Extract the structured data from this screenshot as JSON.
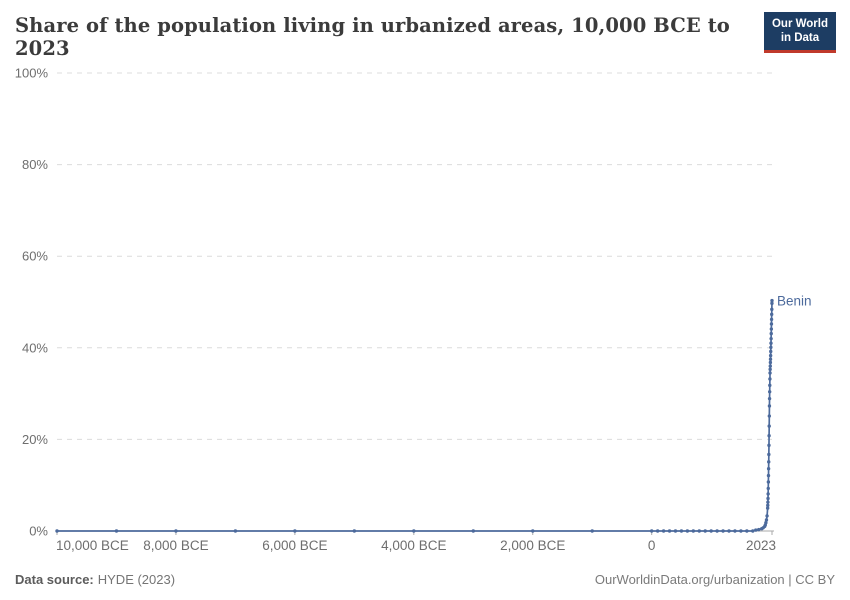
{
  "header": {
    "title": "Share of the population living in urbanized areas, 10,000 BCE to 2023",
    "logo": {
      "line1": "Our World",
      "line2": "in Data"
    }
  },
  "footer": {
    "source_label": "Data source:",
    "source_value": "HYDE (2023)",
    "credit": "OurWorldinData.org/urbanization | CC BY"
  },
  "colors": {
    "series_line": "#4c6a9c",
    "series_label": "#4c6a9c",
    "gridline": "#dcdcdc",
    "axis": "#a8a8a8",
    "tick_label": "#6e6e6e",
    "title": "#3b3b3b",
    "footer_text": "#757575",
    "logo_background": "#1d3d63",
    "logo_underline": "#c0392b"
  },
  "chart_data": {
    "type": "line",
    "title": "Share of the population living in urbanized areas, 10,000 BCE to 2023",
    "xlabel": "",
    "ylabel": "",
    "xlim": [
      -10000,
      2023
    ],
    "ylim": [
      0,
      100
    ],
    "grid": "horizontal-dashed",
    "legend_position": "end-of-line-label",
    "yticks": [
      {
        "value": 0,
        "label": "0%"
      },
      {
        "value": 20,
        "label": "20%"
      },
      {
        "value": 40,
        "label": "40%"
      },
      {
        "value": 60,
        "label": "60%"
      },
      {
        "value": 80,
        "label": "80%"
      },
      {
        "value": 100,
        "label": "100%"
      }
    ],
    "xticks": [
      {
        "value": -10000,
        "label": "10,000 BCE"
      },
      {
        "value": -8000,
        "label": "8,000 BCE"
      },
      {
        "value": -6000,
        "label": "6,000 BCE"
      },
      {
        "value": -4000,
        "label": "4,000 BCE"
      },
      {
        "value": -2000,
        "label": "2,000 BCE"
      },
      {
        "value": 0,
        "label": "0"
      },
      {
        "value": 2023,
        "label": "2023"
      }
    ],
    "series": [
      {
        "name": "Benin",
        "color": "#4c6a9c",
        "points": [
          [
            -10000,
            0
          ],
          [
            -9000,
            0
          ],
          [
            -8000,
            0
          ],
          [
            -7000,
            0
          ],
          [
            -6000,
            0
          ],
          [
            -5000,
            0
          ],
          [
            -4000,
            0
          ],
          [
            -3000,
            0
          ],
          [
            -2000,
            0
          ],
          [
            -1000,
            0
          ],
          [
            0,
            0
          ],
          [
            100,
            0
          ],
          [
            200,
            0
          ],
          [
            300,
            0
          ],
          [
            400,
            0
          ],
          [
            500,
            0
          ],
          [
            600,
            0
          ],
          [
            700,
            0
          ],
          [
            800,
            0
          ],
          [
            900,
            0
          ],
          [
            1000,
            0
          ],
          [
            1100,
            0
          ],
          [
            1200,
            0
          ],
          [
            1300,
            0
          ],
          [
            1400,
            0
          ],
          [
            1500,
            0
          ],
          [
            1600,
            0
          ],
          [
            1700,
            0
          ],
          [
            1750,
            0.2
          ],
          [
            1800,
            0.3
          ],
          [
            1850,
            0.5
          ],
          [
            1875,
            0.7
          ],
          [
            1900,
            1
          ],
          [
            1910,
            1.3
          ],
          [
            1920,
            1.8
          ],
          [
            1930,
            2.4
          ],
          [
            1940,
            3.3
          ],
          [
            1950,
            5
          ],
          [
            1952,
            5.6
          ],
          [
            1954,
            6.3
          ],
          [
            1956,
            7.1
          ],
          [
            1958,
            8.1
          ],
          [
            1960,
            9.3
          ],
          [
            1962,
            10.7
          ],
          [
            1964,
            12.1
          ],
          [
            1966,
            13.6
          ],
          [
            1968,
            15.1
          ],
          [
            1970,
            16.7
          ],
          [
            1972,
            18.7
          ],
          [
            1974,
            20.8
          ],
          [
            1976,
            22.9
          ],
          [
            1978,
            25.1
          ],
          [
            1980,
            27.3
          ],
          [
            1982,
            28.9
          ],
          [
            1984,
            30.4
          ],
          [
            1986,
            31.8
          ],
          [
            1988,
            33.2
          ],
          [
            1990,
            34.5
          ],
          [
            1992,
            35.3
          ],
          [
            1994,
            36
          ],
          [
            1996,
            36.8
          ],
          [
            1998,
            37.5
          ],
          [
            2000,
            38.3
          ],
          [
            2002,
            39.2
          ],
          [
            2004,
            40.1
          ],
          [
            2006,
            41
          ],
          [
            2008,
            42
          ],
          [
            2010,
            43.1
          ],
          [
            2012,
            44.1
          ],
          [
            2014,
            45.2
          ],
          [
            2016,
            46.2
          ],
          [
            2018,
            47.3
          ],
          [
            2020,
            48.4
          ],
          [
            2022,
            49.7
          ],
          [
            2023,
            50.3
          ]
        ]
      }
    ]
  }
}
